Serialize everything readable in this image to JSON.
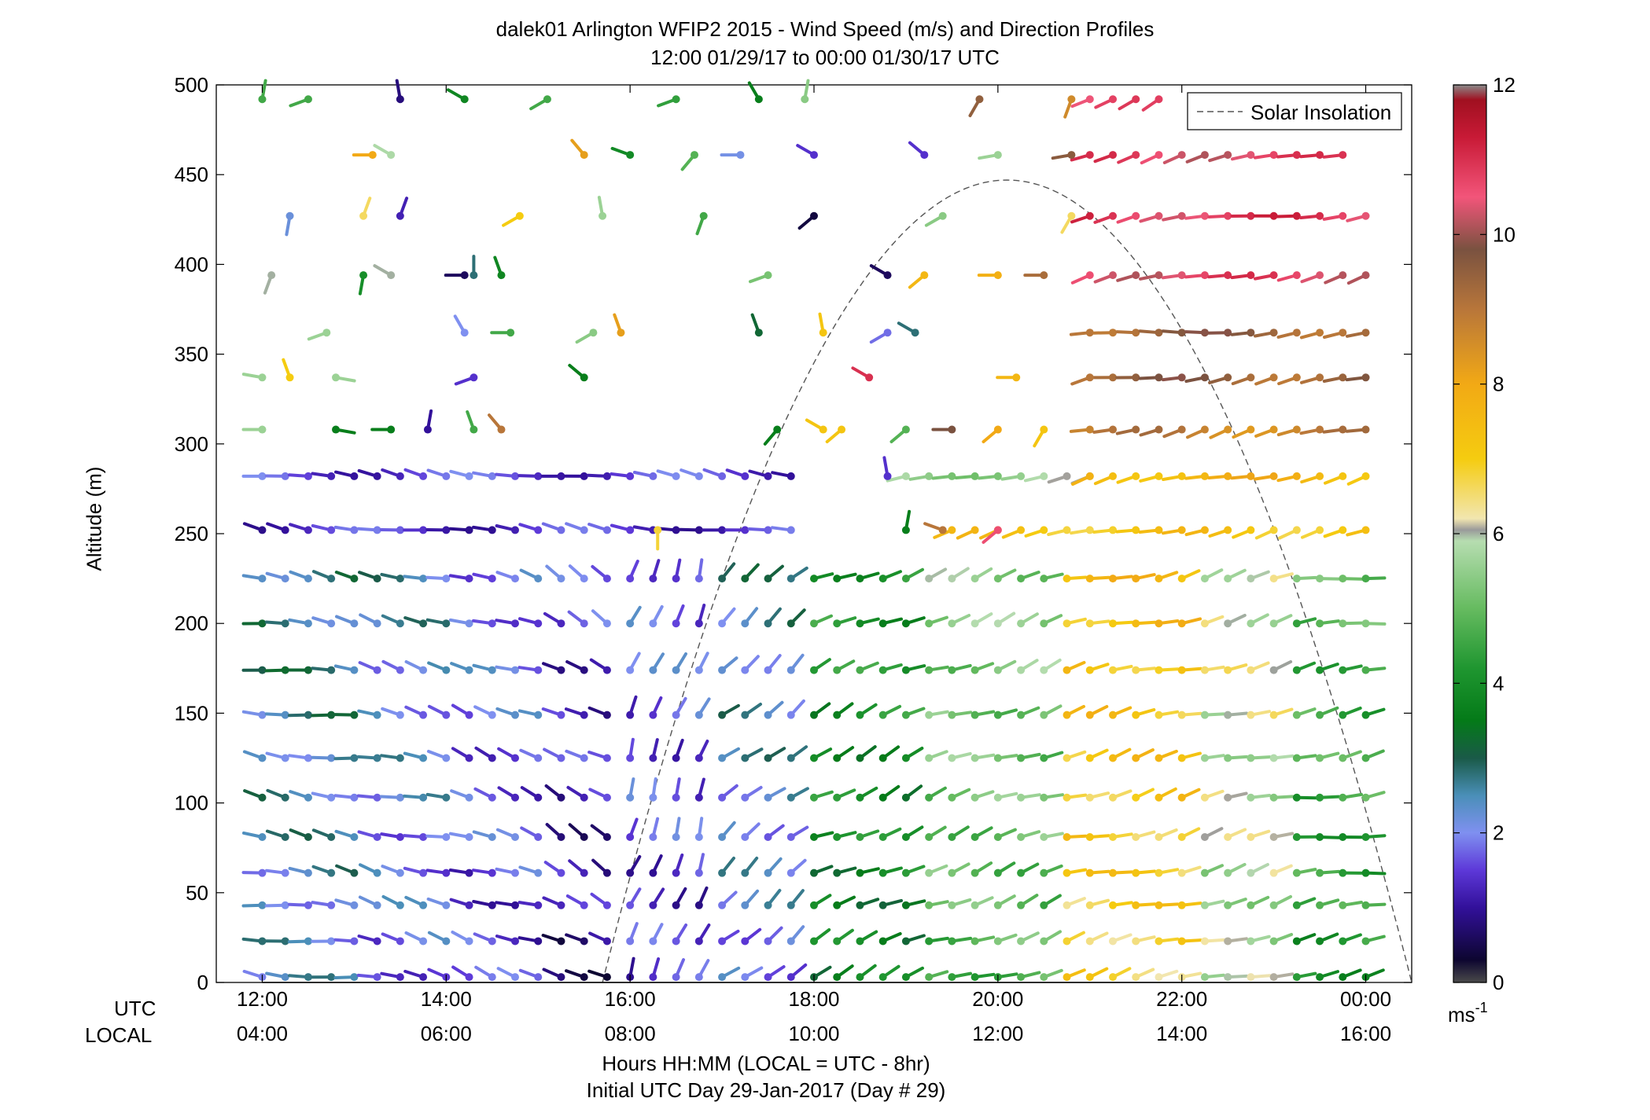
{
  "chart_data": {
    "type": "wind_barb_profile",
    "title": "dalek01 Arlington WFIP2 2015 - Wind Speed (m/s) and Direction Profiles",
    "subtitle": "12:00 01/29/17 to 00:00 01/30/17  UTC",
    "xlabel": "Hours HH:MM  (LOCAL = UTC - 8hr)",
    "xlabel2": "Initial UTC Day 29-Jan-2017 (Day # 29)",
    "ylabel": "Altitude (m)",
    "ylim": [
      0,
      500
    ],
    "y_ticks": [
      "0",
      "50",
      "100",
      "150",
      "200",
      "250",
      "300",
      "350",
      "400",
      "450",
      "500"
    ],
    "xlim_hours": [
      11.5,
      24.5
    ],
    "x_tick_hours": [
      12,
      14,
      16,
      18,
      20,
      22,
      24
    ],
    "utc_row_label": "UTC",
    "local_row_label": "LOCAL",
    "utc_ticks": [
      "12:00",
      "14:00",
      "16:00",
      "18:00",
      "20:00",
      "22:00",
      "00:00"
    ],
    "local_ticks": [
      "04:00",
      "06:00",
      "08:00",
      "10:00",
      "12:00",
      "14:00",
      "16:00"
    ],
    "legend": "Solar Insolation",
    "colorbar": {
      "ticks": [
        "0",
        "2",
        "4",
        "6",
        "8",
        "10",
        "12"
      ],
      "unit": "ms",
      "unit_exp": "-1",
      "range": [
        0,
        12
      ]
    },
    "solar_insolation_curve": {
      "start_hour": 15.7,
      "peak_hour": 20.1,
      "peak_altitude": 447,
      "end_hour": 24.5
    },
    "lower_levels": [
      3,
      23,
      43,
      61,
      81,
      103,
      125,
      149,
      174,
      200,
      225
    ],
    "upper_levels": [
      252,
      282,
      308,
      337,
      362,
      394,
      427,
      461,
      492
    ],
    "sample_interval_hours": 0.25,
    "segments": [
      {
        "t0": 12.0,
        "t1": 13.0,
        "speed": 2.2,
        "dir": 280
      },
      {
        "t0": 13.0,
        "t1": 14.0,
        "speed": 1.8,
        "dir": 285
      },
      {
        "t0": 14.0,
        "t1": 15.0,
        "speed": 1.4,
        "dir": 290
      },
      {
        "t0": 15.0,
        "t1": 15.75,
        "speed": 0.9,
        "dir": 300
      },
      {
        "t0": 15.75,
        "t1": 16.75,
        "speed": 1.3,
        "dir": 20
      },
      {
        "t0": 16.75,
        "t1": 17.75,
        "speed": 2.0,
        "dir": 50
      },
      {
        "t0": 17.75,
        "t1": 19.0,
        "speed": 3.6,
        "dir": 65
      },
      {
        "t0": 19.0,
        "t1": 20.5,
        "speed": 4.8,
        "dir": 70
      },
      {
        "t0": 20.5,
        "t1": 22.0,
        "speed": 6.8,
        "dir": 75
      },
      {
        "t0": 22.0,
        "t1": 23.0,
        "speed": 5.6,
        "dir": 75
      },
      {
        "t0": 23.0,
        "t1": 24.0,
        "speed": 4.2,
        "dir": 80
      }
    ],
    "upper_rows_note": "",
    "sparse_upper": [
      {
        "t": 12.0,
        "z": 492,
        "speed": 4.6,
        "dir": 10
      },
      {
        "t": 12.5,
        "z": 492,
        "speed": 4.6,
        "dir": 250
      },
      {
        "t": 13.5,
        "z": 492,
        "speed": 0.8,
        "dir": 350
      },
      {
        "t": 14.2,
        "z": 492,
        "speed": 3.8,
        "dir": 300
      },
      {
        "t": 15.1,
        "z": 492,
        "speed": 4.6,
        "dir": 240
      },
      {
        "t": 16.5,
        "z": 492,
        "speed": 4.4,
        "dir": 250
      },
      {
        "t": 17.4,
        "z": 492,
        "speed": 3.6,
        "dir": 330
      },
      {
        "t": 17.9,
        "z": 492,
        "speed": 5.4,
        "dir": 10
      },
      {
        "t": 19.8,
        "z": 492,
        "speed": 9.5,
        "dir": 210
      },
      {
        "t": 20.8,
        "z": 492,
        "speed": 8.6,
        "dir": 200
      },
      {
        "t": 13.2,
        "z": 461,
        "speed": 8.0,
        "dir": 270
      },
      {
        "t": 13.4,
        "z": 461,
        "speed": 5.8,
        "dir": 300
      },
      {
        "t": 15.5,
        "z": 461,
        "speed": 8.2,
        "dir": 320
      },
      {
        "t": 16.0,
        "z": 461,
        "speed": 3.9,
        "dir": 290
      },
      {
        "t": 16.7,
        "z": 461,
        "speed": 4.8,
        "dir": 220
      },
      {
        "t": 17.2,
        "z": 461,
        "speed": 2.1,
        "dir": 270
      },
      {
        "t": 18.0,
        "z": 461,
        "speed": 1.4,
        "dir": 300
      },
      {
        "t": 19.2,
        "z": 461,
        "speed": 1.4,
        "dir": 310
      },
      {
        "t": 20.0,
        "z": 461,
        "speed": 5.6,
        "dir": 260
      },
      {
        "t": 20.8,
        "z": 461,
        "speed": 9.6,
        "dir": 260
      },
      {
        "t": 12.3,
        "z": 427,
        "speed": 2.2,
        "dir": 190
      },
      {
        "t": 13.1,
        "z": 427,
        "speed": 6.6,
        "dir": 20
      },
      {
        "t": 13.5,
        "z": 427,
        "speed": 1.2,
        "dir": 20
      },
      {
        "t": 14.8,
        "z": 427,
        "speed": 7.0,
        "dir": 240
      },
      {
        "t": 15.7,
        "z": 427,
        "speed": 5.6,
        "dir": 350
      },
      {
        "t": 16.8,
        "z": 427,
        "speed": 4.6,
        "dir": 200
      },
      {
        "t": 18.0,
        "z": 427,
        "speed": 0.4,
        "dir": 230
      },
      {
        "t": 19.4,
        "z": 427,
        "speed": 5.4,
        "dir": 240
      },
      {
        "t": 20.8,
        "z": 427,
        "speed": 6.6,
        "dir": 210
      },
      {
        "t": 12.1,
        "z": 394,
        "speed": 6.0,
        "dir": 200
      },
      {
        "t": 13.1,
        "z": 394,
        "speed": 4.0,
        "dir": 190
      },
      {
        "t": 13.4,
        "z": 394,
        "speed": 6.0,
        "dir": 300
      },
      {
        "t": 14.2,
        "z": 394,
        "speed": 0.6,
        "dir": 270
      },
      {
        "t": 14.3,
        "z": 394,
        "speed": 2.8,
        "dir": 0
      },
      {
        "t": 14.6,
        "z": 394,
        "speed": 3.8,
        "dir": 340
      },
      {
        "t": 17.5,
        "z": 394,
        "speed": 5.2,
        "dir": 250
      },
      {
        "t": 18.8,
        "z": 394,
        "speed": 0.6,
        "dir": 300
      },
      {
        "t": 19.2,
        "z": 394,
        "speed": 7.6,
        "dir": 230
      },
      {
        "t": 20.0,
        "z": 394,
        "speed": 7.8,
        "dir": 270
      },
      {
        "t": 20.5,
        "z": 394,
        "speed": 9.2,
        "dir": 270
      },
      {
        "t": 12.7,
        "z": 362,
        "speed": 5.6,
        "dir": 250
      },
      {
        "t": 14.2,
        "z": 362,
        "speed": 2.0,
        "dir": 330
      },
      {
        "t": 14.7,
        "z": 362,
        "speed": 4.6,
        "dir": 270
      },
      {
        "t": 15.6,
        "z": 362,
        "speed": 5.4,
        "dir": 240
      },
      {
        "t": 15.9,
        "z": 362,
        "speed": 8.2,
        "dir": 340
      },
      {
        "t": 17.4,
        "z": 362,
        "speed": 3.2,
        "dir": 340
      },
      {
        "t": 18.1,
        "z": 362,
        "speed": 7.2,
        "dir": 350
      },
      {
        "t": 18.8,
        "z": 362,
        "speed": 1.8,
        "dir": 240
      },
      {
        "t": 19.1,
        "z": 362,
        "speed": 2.8,
        "dir": 300
      },
      {
        "t": 12.0,
        "z": 337,
        "speed": 5.6,
        "dir": 280
      },
      {
        "t": 12.3,
        "z": 337,
        "speed": 7.0,
        "dir": 340
      },
      {
        "t": 12.8,
        "z": 337,
        "speed": 5.6,
        "dir": 100
      },
      {
        "t": 14.3,
        "z": 337,
        "speed": 1.4,
        "dir": 250
      },
      {
        "t": 15.5,
        "z": 337,
        "speed": 3.6,
        "dir": 310
      },
      {
        "t": 18.6,
        "z": 337,
        "speed": 11.0,
        "dir": 300
      },
      {
        "t": 20.2,
        "z": 337,
        "speed": 7.6,
        "dir": 270
      },
      {
        "t": 21.0,
        "z": 337,
        "speed": 9.0,
        "dir": 250
      },
      {
        "t": 12.0,
        "z": 308,
        "speed": 5.6,
        "dir": 270
      },
      {
        "t": 12.8,
        "z": 308,
        "speed": 3.6,
        "dir": 100
      },
      {
        "t": 13.4,
        "z": 308,
        "speed": 3.6,
        "dir": 270
      },
      {
        "t": 13.8,
        "z": 308,
        "speed": 1.0,
        "dir": 10
      },
      {
        "t": 14.3,
        "z": 308,
        "speed": 4.6,
        "dir": 340
      },
      {
        "t": 14.6,
        "z": 308,
        "speed": 9.0,
        "dir": 320
      },
      {
        "t": 17.6,
        "z": 308,
        "speed": 3.6,
        "dir": 220
      },
      {
        "t": 18.1,
        "z": 308,
        "speed": 7.2,
        "dir": 300
      },
      {
        "t": 18.3,
        "z": 308,
        "speed": 7.2,
        "dir": 230
      },
      {
        "t": 19.0,
        "z": 308,
        "speed": 4.8,
        "dir": 230
      },
      {
        "t": 19.5,
        "z": 308,
        "speed": 9.8,
        "dir": 270
      },
      {
        "t": 20.0,
        "z": 308,
        "speed": 8.0,
        "dir": 230
      },
      {
        "t": 20.5,
        "z": 308,
        "speed": 7.2,
        "dir": 210
      },
      {
        "t": 18.8,
        "z": 282,
        "speed": 1.4,
        "dir": 350
      },
      {
        "t": 19.0,
        "z": 252,
        "speed": 3.6,
        "dir": 10
      },
      {
        "t": 19.4,
        "z": 252,
        "speed": 9.0,
        "dir": 290
      },
      {
        "t": 20.0,
        "z": 252,
        "speed": 10.6,
        "dir": 230
      },
      {
        "t": 16.3,
        "z": 252,
        "speed": 6.8,
        "dir": 180
      }
    ],
    "dense_upper": [
      {
        "z": 492,
        "t0": 21.0,
        "t1": 21.9,
        "speed": 10.4,
        "dir": 240
      },
      {
        "z": 461,
        "t0": 21.0,
        "t1": 23.8,
        "speed": 10.6,
        "dir": 255
      },
      {
        "z": 427,
        "t0": 21.0,
        "t1": 24.0,
        "speed": 10.8,
        "dir": 260
      },
      {
        "z": 394,
        "t0": 21.0,
        "t1": 24.0,
        "speed": 10.6,
        "dir": 255
      },
      {
        "z": 362,
        "t0": 21.0,
        "t1": 24.0,
        "speed": 9.4,
        "dir": 265
      },
      {
        "z": 337,
        "t0": 21.25,
        "t1": 24.0,
        "speed": 9.4,
        "dir": 260
      },
      {
        "z": 308,
        "t0": 21.0,
        "t1": 24.0,
        "speed": 8.8,
        "dir": 255
      },
      {
        "z": 282,
        "t0": 12.0,
        "t1": 17.75,
        "speed": 1.5,
        "dir": 280
      },
      {
        "z": 282,
        "t0": 19.0,
        "t1": 21.0,
        "speed": 5.6,
        "dir": 255
      },
      {
        "z": 282,
        "t0": 21.0,
        "t1": 24.0,
        "speed": 7.6,
        "dir": 255
      },
      {
        "z": 252,
        "t0": 12.0,
        "t1": 17.75,
        "speed": 1.4,
        "dir": 280
      },
      {
        "z": 252,
        "t0": 19.5,
        "t1": 24.0,
        "speed": 7.2,
        "dir": 255
      }
    ]
  }
}
